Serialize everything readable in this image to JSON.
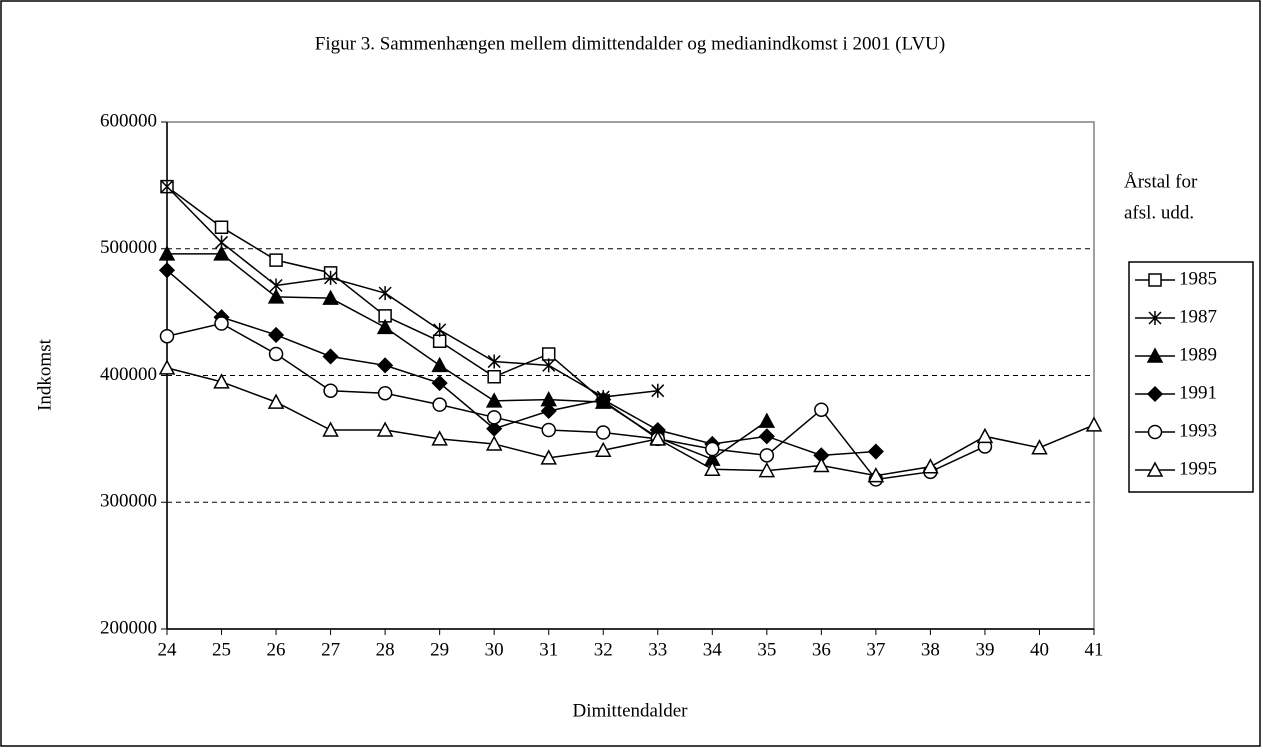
{
  "chart_data": {
    "type": "line",
    "title": "Figur 3. Sammenhængen mellem dimittendalder og medianindkomst i 2001 (LVU)",
    "x_label": "Dimittendalder",
    "y_label": "Indkomst",
    "legend_title": [
      "Årstal for",
      "afsl. udd."
    ],
    "legend": "right",
    "grid": true,
    "x": [
      24,
      25,
      26,
      27,
      28,
      29,
      30,
      31,
      32,
      33,
      34,
      35,
      36,
      37,
      38,
      39,
      40,
      41
    ],
    "xlim": [
      24,
      41
    ],
    "xticks": [
      24,
      25,
      26,
      27,
      28,
      29,
      30,
      31,
      32,
      33,
      34,
      35,
      36,
      37,
      38,
      39,
      40,
      41
    ],
    "ylim": [
      200000,
      600000
    ],
    "yticks": [
      200000,
      300000,
      400000,
      500000,
      600000
    ],
    "series": [
      {
        "name": "1985",
        "color": "#000000",
        "marker": "square-open",
        "values": [
          549000,
          517000,
          491000,
          481000,
          447000,
          427000,
          399000,
          417000,
          380000,
          350000,
          null,
          null,
          null,
          null,
          null,
          null,
          null,
          null
        ]
      },
      {
        "name": "1987",
        "color": "#000000",
        "marker": "asterisk",
        "values": [
          549000,
          505000,
          471000,
          477000,
          465000,
          436000,
          411000,
          408000,
          383000,
          388000,
          null,
          null,
          null,
          null,
          null,
          null,
          null,
          null
        ]
      },
      {
        "name": "1989",
        "color": "#000000",
        "marker": "triangle-filled",
        "values": [
          496000,
          496000,
          462000,
          461000,
          438000,
          408000,
          380000,
          381000,
          379000,
          351000,
          334000,
          364000,
          null,
          null,
          null,
          null,
          null,
          null
        ]
      },
      {
        "name": "1991",
        "color": "#000000",
        "marker": "diamond-filled",
        "values": [
          483000,
          446000,
          432000,
          415000,
          408000,
          394000,
          358000,
          372000,
          381000,
          357000,
          346000,
          352000,
          337000,
          340000,
          null,
          null,
          null,
          null
        ]
      },
      {
        "name": "1993",
        "color": "#000000",
        "marker": "circle-open",
        "values": [
          431000,
          441000,
          417000,
          388000,
          386000,
          377000,
          367000,
          357000,
          355000,
          350000,
          342000,
          337000,
          373000,
          318000,
          324000,
          344000,
          null,
          null
        ]
      },
      {
        "name": "1995",
        "color": "#000000",
        "marker": "triangle-open",
        "values": [
          406000,
          395000,
          379000,
          357000,
          357000,
          350000,
          346000,
          335000,
          341000,
          350000,
          326000,
          325000,
          329000,
          321000,
          328000,
          352000,
          343000,
          361000
        ]
      }
    ]
  }
}
